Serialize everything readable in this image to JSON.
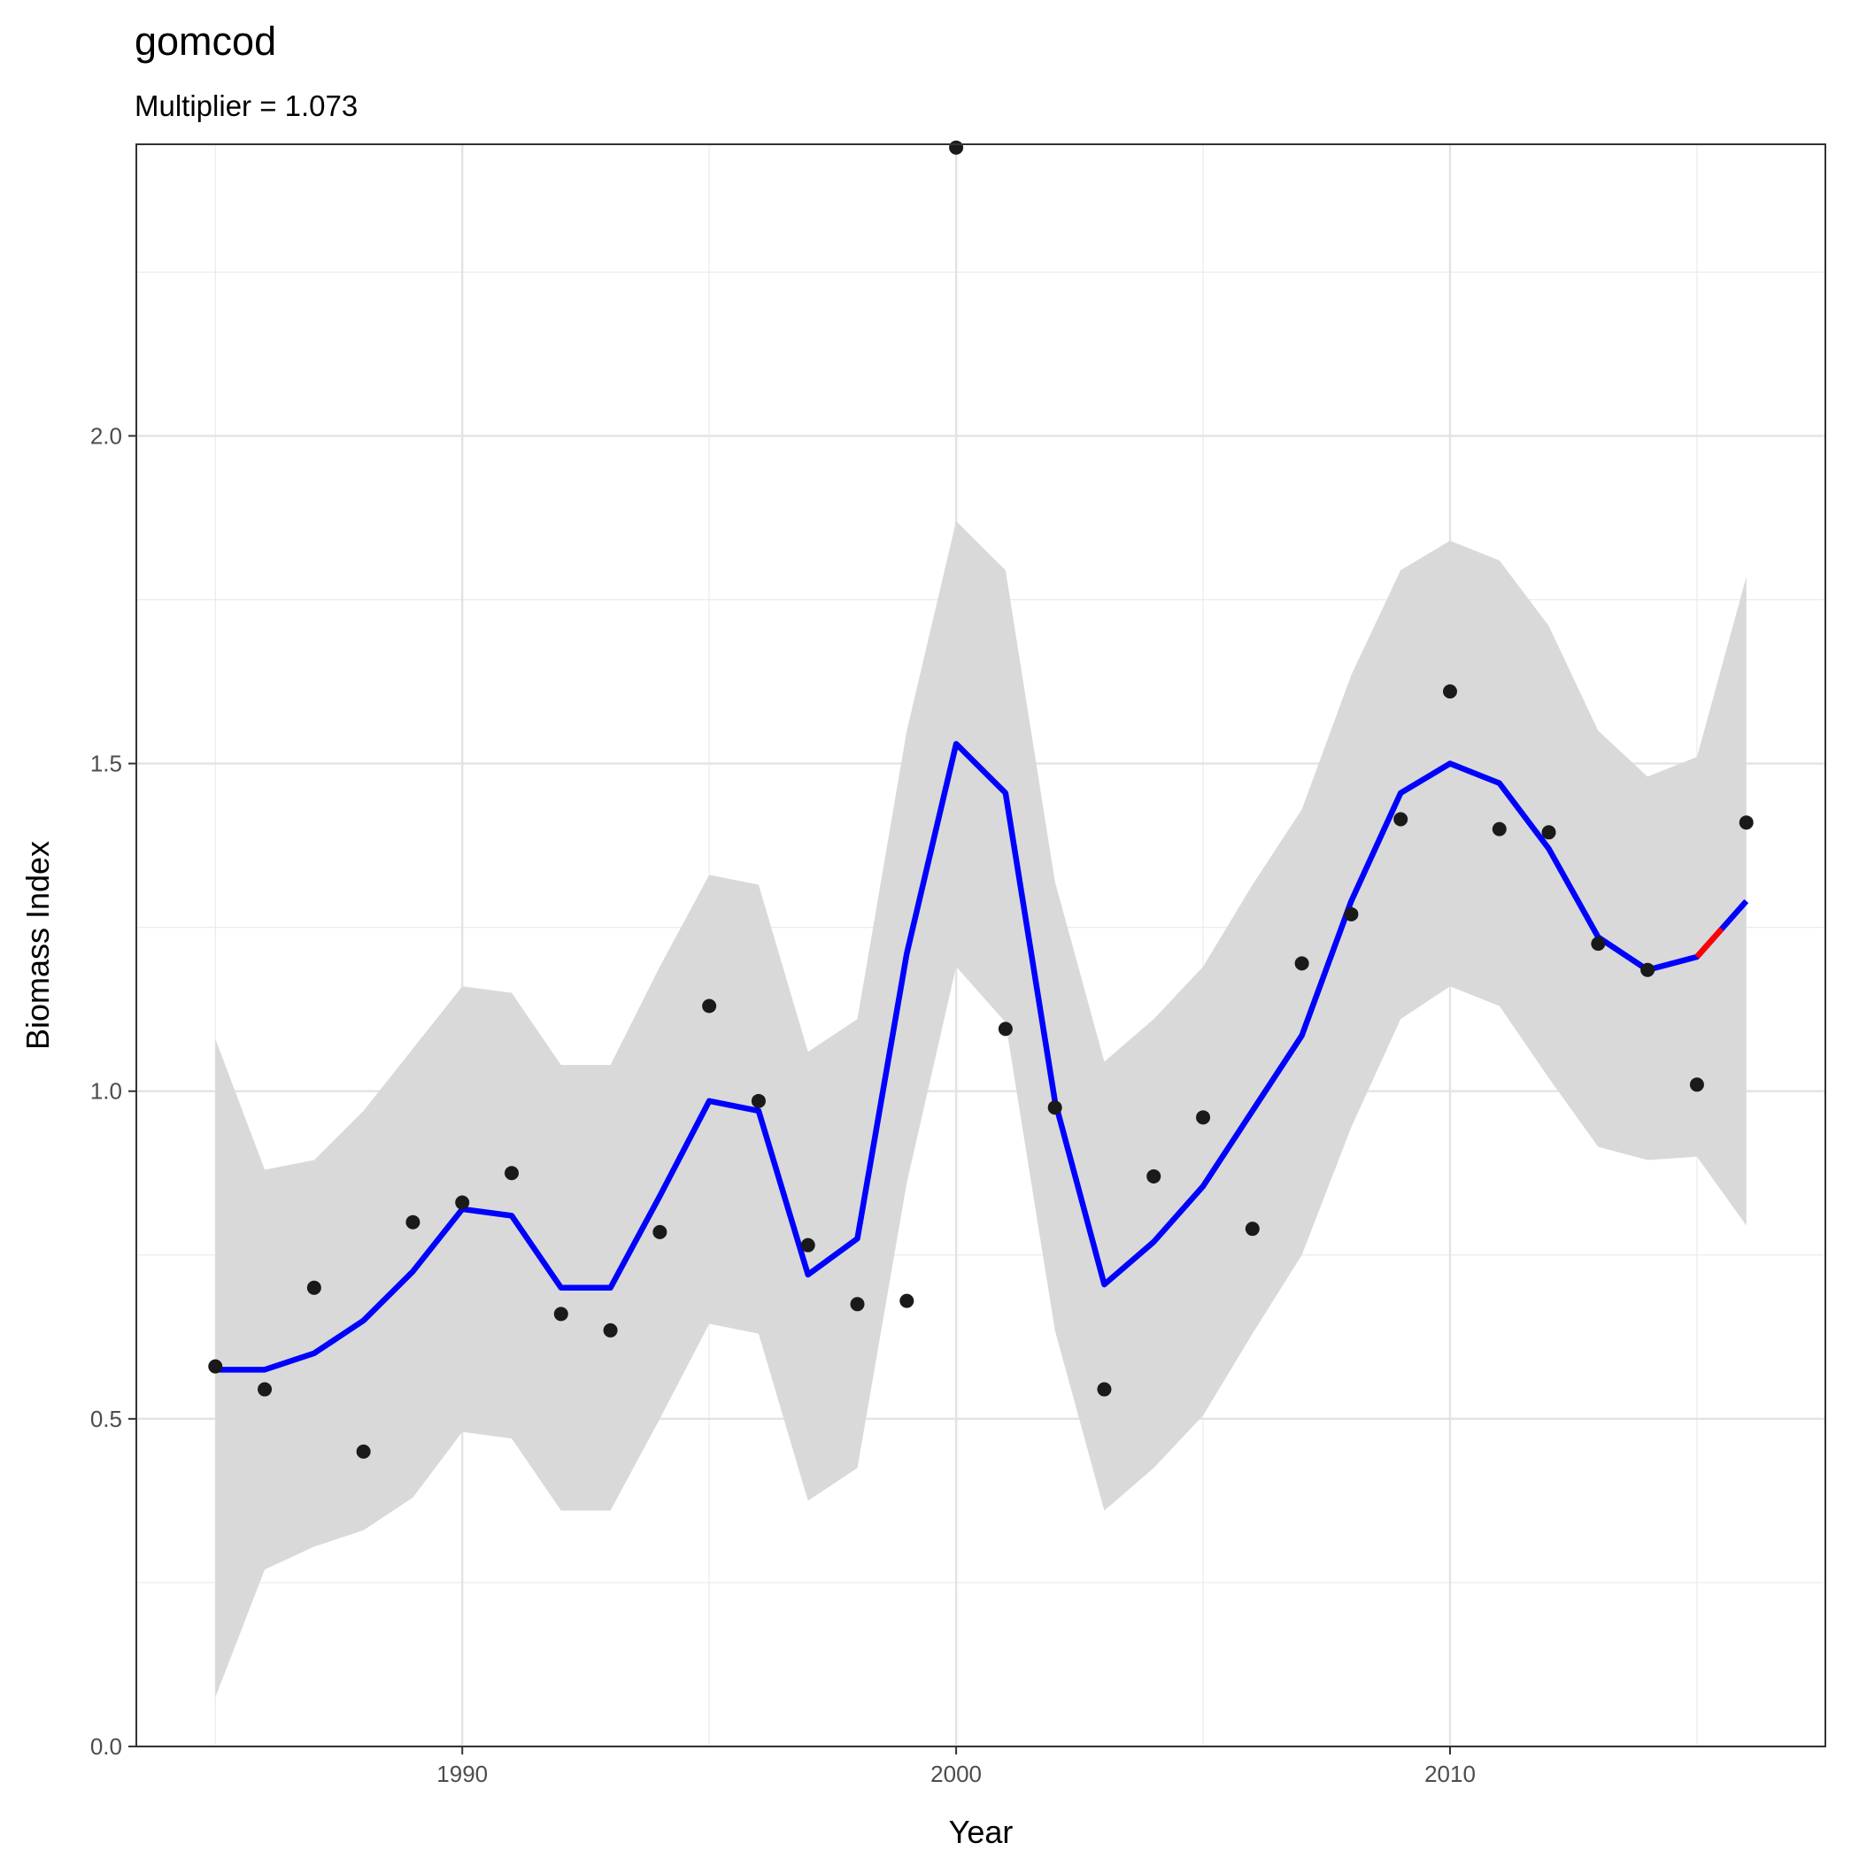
{
  "chart_data": {
    "type": "line",
    "title": "gomcod",
    "subtitle": "Multiplier = 1.073",
    "xlabel": "Year",
    "ylabel": "Biomass Index",
    "xlim": [
      1983.4,
      2017.6
    ],
    "ylim": [
      0,
      2.445
    ],
    "x_ticks": [
      1990,
      2000,
      2010
    ],
    "x_tick_labels": [
      "1990",
      "2000",
      "2010"
    ],
    "y_ticks": [
      0,
      0.5,
      1.0,
      1.5,
      2.0
    ],
    "y_tick_labels": [
      "0.0",
      "0.5",
      "1.0",
      "1.5",
      "2.0"
    ],
    "grid": true,
    "legend": "none",
    "x": [
      1985,
      1986,
      1987,
      1988,
      1989,
      1990,
      1991,
      1992,
      1993,
      1994,
      1995,
      1996,
      1997,
      1998,
      1999,
      2000,
      2001,
      2002,
      2003,
      2004,
      2005,
      2006,
      2007,
      2008,
      2009,
      2010,
      2011,
      2012,
      2013,
      2014,
      2015,
      2016
    ],
    "series": [
      {
        "role": "observed points",
        "color": "#1a1a1a",
        "values": [
          0.58,
          0.545,
          0.7,
          0.45,
          0.8,
          0.83,
          0.875,
          0.66,
          0.635,
          0.785,
          1.13,
          0.985,
          0.765,
          0.675,
          0.68,
          2.44,
          1.095,
          0.975,
          0.545,
          0.87,
          0.96,
          0.79,
          1.195,
          1.27,
          1.415,
          1.61,
          1.4,
          1.395,
          1.225,
          1.185,
          1.01,
          1.41
        ]
      },
      {
        "role": "smoothed fit",
        "color": "#0000ff",
        "values": [
          0.575,
          0.575,
          0.6,
          0.65,
          0.725,
          0.82,
          0.81,
          0.7,
          0.7,
          0.84,
          0.985,
          0.97,
          0.72,
          0.775,
          1.21,
          1.53,
          1.455,
          0.985,
          0.705,
          0.77,
          0.855,
          0.97,
          1.085,
          1.29,
          1.455,
          1.5,
          1.47,
          1.37,
          1.235,
          1.185,
          1.205,
          1.29
        ]
      },
      {
        "role": "highlighted projection",
        "color": "#ff0000",
        "x": [
          2015,
          2015.5
        ],
        "values": [
          1.205,
          1.2475
        ]
      }
    ],
    "band": {
      "role": "confidence band",
      "color": "#d9d9d9",
      "lower": [
        0.075,
        0.27,
        0.305,
        0.33,
        0.38,
        0.48,
        0.47,
        0.36,
        0.36,
        0.5,
        0.645,
        0.63,
        0.375,
        0.425,
        0.86,
        1.19,
        1.105,
        0.635,
        0.36,
        0.425,
        0.505,
        0.63,
        0.75,
        0.945,
        1.11,
        1.16,
        1.13,
        1.02,
        0.915,
        0.895,
        0.9,
        0.795
      ],
      "upper": [
        1.08,
        0.88,
        0.895,
        0.97,
        1.065,
        1.16,
        1.15,
        1.04,
        1.04,
        1.19,
        1.33,
        1.315,
        1.06,
        1.11,
        1.55,
        1.87,
        1.795,
        1.32,
        1.045,
        1.11,
        1.19,
        1.315,
        1.43,
        1.635,
        1.795,
        1.84,
        1.81,
        1.71,
        1.55,
        1.48,
        1.51,
        1.785
      ]
    }
  }
}
